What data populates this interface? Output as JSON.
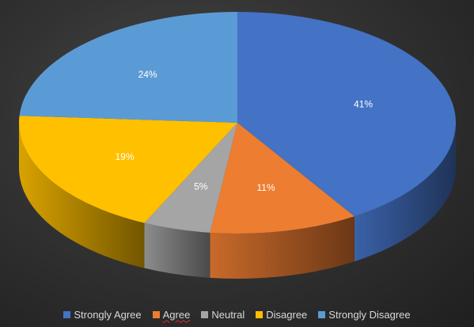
{
  "chart_data": {
    "type": "pie",
    "style": "3d",
    "categories": [
      "Strongly Agree",
      "Agree",
      "Neutral",
      "Disagree",
      "Strongly Disagree"
    ],
    "values": [
      41,
      11,
      5,
      19,
      24
    ],
    "labels": [
      "41%",
      "11%",
      "5%",
      "19%",
      "24%"
    ],
    "unit": "%",
    "colors": [
      "#4472C4",
      "#ED7D31",
      "#A5A5A5",
      "#FFC000",
      "#5B9BD5"
    ],
    "legend_position": "bottom"
  },
  "background_color": "#2b2b2b"
}
